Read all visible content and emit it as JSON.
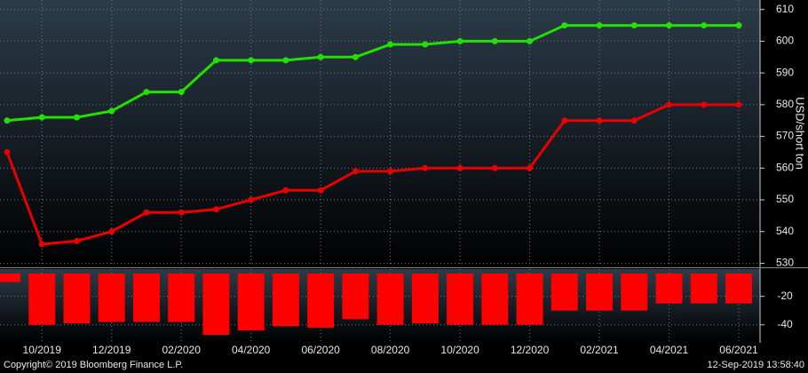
{
  "chart_data": [
    {
      "type": "line",
      "categories": [
        null,
        "10/2019",
        null,
        "12/2019",
        null,
        "02/2020",
        null,
        "04/2020",
        null,
        "06/2020",
        null,
        "08/2020",
        null,
        "10/2020",
        null,
        "12/2020",
        null,
        "02/2021",
        null,
        "04/2021",
        null,
        "06/2021"
      ],
      "series": [
        {
          "color": "#22e000",
          "values": [
            575,
            576,
            576,
            578,
            584,
            584,
            594,
            594,
            594,
            595,
            595,
            599,
            599,
            600,
            600,
            600,
            605,
            605,
            605,
            605,
            605,
            605
          ]
        },
        {
          "color": "#e80000",
          "values": [
            565,
            536,
            537,
            540,
            546,
            546,
            547,
            550,
            553,
            553,
            559,
            559,
            560,
            560,
            560,
            560,
            575,
            575,
            575,
            580,
            580,
            580
          ]
        }
      ],
      "ylabel": "USD/short ton",
      "ylim": [
        529,
        613
      ],
      "yticks": [
        530,
        540,
        550,
        560,
        570,
        580,
        590,
        600,
        610
      ],
      "grid": true
    },
    {
      "type": "bar",
      "categories": [
        null,
        "10/2019",
        null,
        "12/2019",
        null,
        "02/2020",
        null,
        "04/2020",
        null,
        "06/2020",
        null,
        "08/2020",
        null,
        "10/2020",
        null,
        "12/2020",
        null,
        "02/2021",
        null,
        "04/2021",
        null,
        "06/2021"
      ],
      "values": [
        -10,
        -40,
        -39,
        -38,
        -38,
        -38,
        -47,
        -44,
        -41,
        -42,
        -36,
        -40,
        -39,
        -40,
        -40,
        -40,
        -30,
        -30,
        -30,
        -25,
        -25,
        -25
      ],
      "color": "#ff0000",
      "ylim": [
        -52,
        -4
      ],
      "yticks": [
        -20,
        -40
      ],
      "grid": true
    }
  ],
  "footer": {
    "copyright": "Copyright© 2019 Bloomberg Finance L.P.",
    "timestamp": "12-Sep-2019 13:58:40"
  }
}
